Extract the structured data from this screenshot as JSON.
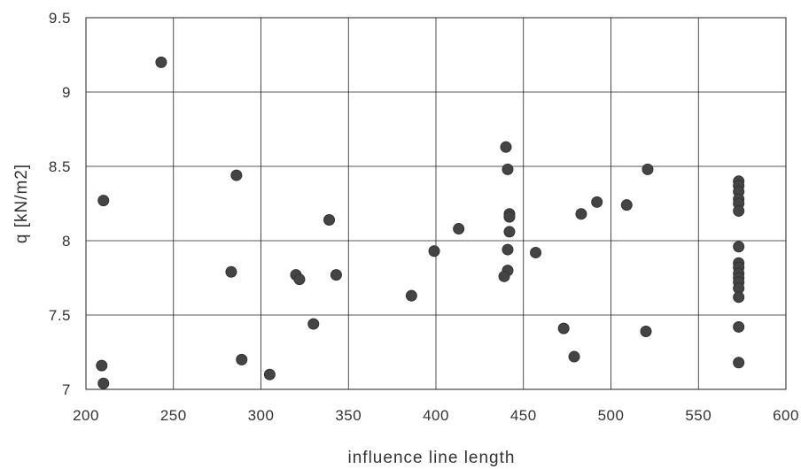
{
  "chart_data": {
    "type": "scatter",
    "title": "",
    "xlabel": "influence line length",
    "ylabel": "q [kN/m2]",
    "xlim": [
      200,
      600
    ],
    "ylim": [
      7,
      9.5
    ],
    "x_ticks": [
      200,
      250,
      300,
      350,
      400,
      450,
      500,
      550,
      600
    ],
    "y_ticks": [
      7,
      7.5,
      8,
      8.5,
      9,
      9.5
    ],
    "x_tick_labels": [
      "200",
      "250",
      "300",
      "350",
      "400",
      "450",
      "500",
      "550",
      "600"
    ],
    "y_tick_labels": [
      "7",
      "7.5",
      "8",
      "8.5",
      "9",
      "9.5"
    ],
    "grid": true,
    "legend": "none",
    "marker_color": "#444444",
    "series": [
      {
        "points": [
          [
            210,
            8.27
          ],
          [
            209,
            7.16
          ],
          [
            210,
            7.04
          ],
          [
            243,
            9.2
          ],
          [
            286,
            8.44
          ],
          [
            283,
            7.79
          ],
          [
            289,
            7.2
          ],
          [
            305,
            7.1
          ],
          [
            320,
            7.77
          ],
          [
            322,
            7.74
          ],
          [
            330,
            7.44
          ],
          [
            339,
            8.14
          ],
          [
            343,
            7.77
          ],
          [
            386,
            7.63
          ],
          [
            399,
            7.93
          ],
          [
            413,
            8.08
          ],
          [
            440,
            8.63
          ],
          [
            441,
            8.48
          ],
          [
            442,
            8.18
          ],
          [
            442,
            8.16
          ],
          [
            442,
            8.06
          ],
          [
            441,
            7.94
          ],
          [
            441,
            7.8
          ],
          [
            439,
            7.76
          ],
          [
            457,
            7.92
          ],
          [
            473,
            7.41
          ],
          [
            479,
            7.22
          ],
          [
            483,
            8.18
          ],
          [
            492,
            8.26
          ],
          [
            509,
            8.24
          ],
          [
            521,
            8.48
          ],
          [
            520,
            7.39
          ],
          [
            573,
            8.4
          ],
          [
            573,
            8.37
          ],
          [
            573,
            8.33
          ],
          [
            573,
            8.28
          ],
          [
            573,
            8.25
          ],
          [
            573,
            8.2
          ],
          [
            573,
            7.96
          ],
          [
            573,
            7.85
          ],
          [
            573,
            7.82
          ],
          [
            573,
            7.78
          ],
          [
            573,
            7.75
          ],
          [
            573,
            7.72
          ],
          [
            573,
            7.68
          ],
          [
            573,
            7.62
          ],
          [
            573,
            7.42
          ],
          [
            573,
            7.18
          ]
        ]
      }
    ]
  }
}
